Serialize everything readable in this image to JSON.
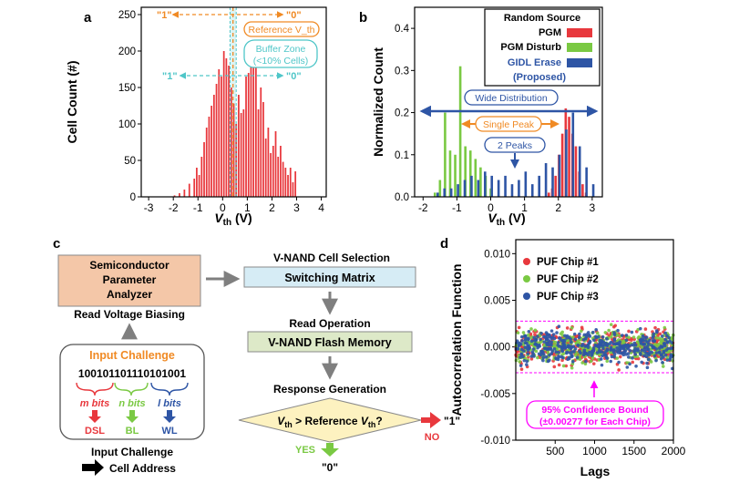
{
  "panel_labels": {
    "a": "a",
    "b": "b",
    "c": "c",
    "d": "d"
  },
  "colors": {
    "pgm": "#e8383d",
    "pgm_disturb": "#7ac943",
    "gidl": "#2e55a5",
    "orange": "#f08a24",
    "cyan": "#4fc6c8",
    "flow_peach": "#f4c7a8",
    "flow_blue": "#d6ecf5",
    "flow_green": "#dde9c8",
    "diamond": "#fdf2c0",
    "magenta": "#ff00ff",
    "dsl": "#e8383d",
    "bl": "#7ac943",
    "wl": "#2e55a5"
  },
  "chart_data": [
    {
      "id": "a",
      "type": "bar",
      "xlabel": "V_th (V)",
      "ylabel": "Cell Count (#)",
      "xlim": [
        -3.3,
        4.2
      ],
      "ylim": [
        0,
        260
      ],
      "xticks": [
        -3,
        -2,
        -1,
        0,
        1,
        2,
        3,
        4
      ],
      "yticks": [
        0,
        50,
        100,
        150,
        200,
        250
      ],
      "bar_width": 0.065,
      "x": [
        -1.15,
        -1.05,
        -0.95,
        -0.85,
        -0.75,
        -0.65,
        -0.55,
        -0.45,
        -0.35,
        -0.25,
        -0.15,
        -0.05,
        0.05,
        0.15,
        0.25,
        0.35,
        0.45,
        0.55,
        0.65,
        0.75,
        0.85,
        0.95,
        1.05,
        1.15,
        1.25,
        1.35,
        1.45,
        1.55,
        1.65,
        1.75,
        1.85,
        1.95,
        2.05,
        2.15,
        2.25,
        2.35,
        2.45,
        2.55,
        2.65,
        2.75,
        2.85,
        2.95,
        -1.95,
        -1.75,
        -1.55,
        -1.35
      ],
      "values": [
        25,
        40,
        30,
        55,
        75,
        95,
        110,
        125,
        140,
        155,
        175,
        165,
        200,
        190,
        180,
        150,
        128,
        100,
        140,
        115,
        120,
        165,
        170,
        195,
        178,
        200,
        120,
        150,
        130,
        80,
        95,
        60,
        70,
        90,
        55,
        70,
        48,
        40,
        30,
        40,
        20,
        35,
        2,
        5,
        10,
        18
      ],
      "annotations": {
        "top_left": "\"1\"",
        "top_right": "\"0\"",
        "reference": "Reference V_th",
        "buffer_zone": "Buffer Zone",
        "buffer_detail": "(<10% Cells)",
        "mid_left": "\"1\"",
        "mid_right": "\"0\""
      }
    },
    {
      "id": "b",
      "type": "bar",
      "xlabel": "V_th (V)",
      "ylabel": "Normalized Count",
      "xlim": [
        -2.25,
        3.3
      ],
      "ylim": [
        0,
        0.45
      ],
      "xticks": [
        -2,
        -1,
        0,
        1,
        2,
        3
      ],
      "yticks": [
        0.0,
        0.1,
        0.2,
        0.3,
        0.4
      ],
      "bar_width": 0.07,
      "series": [
        {
          "name": "PGM",
          "color_key": "pgm",
          "x": [
            1.75,
            1.85,
            1.95,
            2.05,
            2.15,
            2.25,
            2.35,
            2.45,
            2.55,
            2.65,
            2.75,
            2.85
          ],
          "values": [
            0.01,
            0.02,
            0.05,
            0.1,
            0.15,
            0.21,
            0.19,
            0.15,
            0.12,
            0.06,
            0.03,
            0.01
          ]
        },
        {
          "name": "PGM Disturb",
          "color_key": "pgm_disturb",
          "x": [
            -1.65,
            -1.5,
            -1.35,
            -1.2,
            -1.05,
            -0.9,
            -0.75,
            -0.6,
            -0.45,
            -0.3,
            -0.15,
            0.0
          ],
          "values": [
            0.01,
            0.04,
            0.2,
            0.11,
            0.1,
            0.31,
            0.12,
            0.11,
            0.09,
            0.07,
            0.05,
            0.02
          ]
        },
        {
          "name": "GIDL Erase (Proposed)",
          "color_key": "gidl",
          "x": [
            -1.6,
            -1.4,
            -1.2,
            -1.0,
            -0.8,
            -0.6,
            -0.4,
            -0.2,
            0.0,
            0.2,
            0.4,
            0.6,
            0.8,
            1.0,
            1.2,
            1.4,
            1.6,
            1.8,
            2.0,
            2.2,
            2.4,
            2.6,
            2.8,
            3.0
          ],
          "values": [
            0.01,
            0.02,
            0.02,
            0.03,
            0.04,
            0.05,
            0.04,
            0.06,
            0.05,
            0.04,
            0.05,
            0.03,
            0.04,
            0.06,
            0.03,
            0.05,
            0.08,
            0.07,
            0.1,
            0.16,
            0.2,
            0.12,
            0.07,
            0.03
          ]
        }
      ],
      "legend": {
        "title": "Random Source",
        "entries": [
          "PGM",
          "PGM Disturb",
          "GIDL Erase",
          "(Proposed)"
        ]
      },
      "annotations": {
        "wide": "Wide Distribution",
        "single": "Single Peak",
        "two": "2 Peaks"
      }
    },
    {
      "id": "d",
      "type": "scatter",
      "xlabel": "Lags",
      "ylabel": "Autocorrelation Function",
      "xlim": [
        0,
        2000
      ],
      "ylim": [
        -0.01,
        0.0115
      ],
      "xticks": [
        500,
        1000,
        1500,
        2000
      ],
      "yticks": [
        -0.01,
        -0.005,
        0.0,
        0.005,
        0.01
      ],
      "ytick_labels": [
        "-0.010",
        "-0.005",
        "0.000",
        "0.005",
        "0.010"
      ],
      "band": [
        -0.00277,
        0.00277
      ],
      "series": [
        {
          "name": "PUF Chip #1",
          "color_key": "pgm"
        },
        {
          "name": "PUF Chip #2",
          "color_key": "pgm_disturb"
        },
        {
          "name": "PUF Chip #3",
          "color_key": "gidl"
        }
      ],
      "annotations": {
        "bound": "95% Confidence Bound",
        "bound_detail": "(±0.00277 for Each Chip)"
      }
    }
  ],
  "flow": {
    "analyzer": [
      "Semiconductor",
      "Parameter",
      "Analyzer"
    ],
    "read_bias": "Read Voltage Biasing",
    "cell_selection": "V-NAND Cell Selection",
    "switching": "Switching Matrix",
    "read_op": "Read Operation",
    "flash": "V-NAND Flash Memory",
    "response": "Response Generation",
    "challenge_title": "Input Challenge",
    "bits_part1": "100101",
    "bits_part2": "101110",
    "bits_part3": "101001",
    "m_bits": "m bits",
    "n_bits": "n bits",
    "l_bits": "l bits",
    "dsl": "DSL",
    "bl": "BL",
    "wl": "WL",
    "decision": "V_th > Reference V_th?",
    "no": "NO",
    "yes": "YES",
    "out_one": "\"1\"",
    "out_zero": "\"0\"",
    "footer1": "Input Challenge",
    "footer2": "Cell Address"
  }
}
